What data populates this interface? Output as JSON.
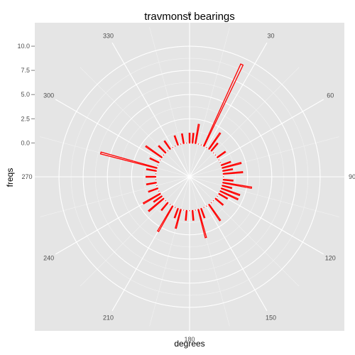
{
  "chart_data": {
    "type": "polar-bar",
    "title": "travmonst bearings",
    "xlabel": "degrees",
    "ylabel": "freqs",
    "theta_ticks": [
      "0",
      "30",
      "60",
      "90",
      "120",
      "150",
      "180",
      "210",
      "240",
      "270",
      "300",
      "330"
    ],
    "r_ticks": [
      "0.0",
      "2.5",
      "5.0",
      "7.5",
      "10.0"
    ],
    "r_tick_values": [
      0,
      2.5,
      5,
      7.5,
      10
    ],
    "rlim": [
      -3.5,
      12.5
    ],
    "grid": true,
    "series": [
      {
        "color": "#ff0000",
        "bearings": [
          0,
          5,
          10,
          15,
          20,
          25,
          30,
          35,
          40,
          45,
          50,
          55,
          60,
          65,
          70,
          75,
          80,
          85,
          90,
          95,
          100,
          105,
          110,
          115,
          120,
          125,
          130,
          135,
          140,
          145,
          150,
          155,
          160,
          165,
          170,
          175,
          180,
          185,
          190,
          195,
          200,
          205,
          210,
          215,
          220,
          225,
          230,
          235,
          240,
          245,
          250,
          255,
          260,
          265,
          270,
          275,
          280,
          285,
          290,
          295,
          300,
          305,
          310,
          315,
          320,
          325,
          330,
          335,
          340,
          345,
          350,
          355
        ],
        "freqs": [
          1,
          1,
          2,
          0,
          0,
          9.3,
          0,
          2,
          1,
          0,
          0,
          1,
          0,
          0,
          1,
          2,
          1,
          2,
          0,
          1,
          3,
          1,
          2,
          2,
          1,
          0,
          1,
          0,
          0,
          2,
          0,
          0,
          1,
          3,
          0,
          1,
          0,
          1,
          0,
          2,
          1,
          0,
          3,
          0,
          1,
          0,
          2,
          1,
          2,
          0,
          1,
          0,
          1,
          0,
          1,
          0,
          1,
          6,
          0,
          1,
          0,
          2,
          0,
          1,
          0,
          1,
          0,
          0,
          1,
          0,
          1,
          0
        ]
      }
    ]
  }
}
